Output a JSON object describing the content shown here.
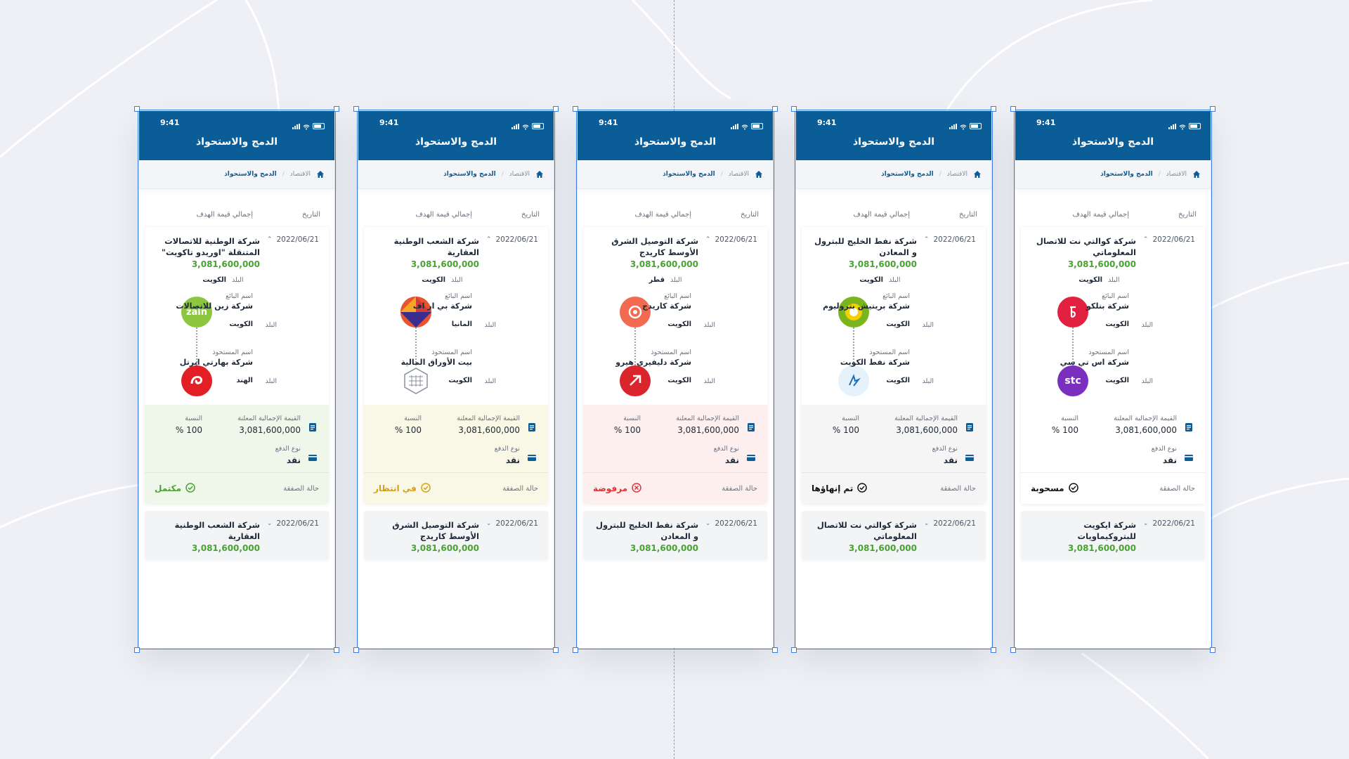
{
  "screens": [
    {
      "time": "9:41",
      "title": "الدمج والاستحواذ",
      "breadcrumb": {
        "parent": "الاقتصاد",
        "current": "الدمج والاستحواذ"
      },
      "columns": {
        "date": "التاريخ",
        "total": "إجمالي قيمة الهدف"
      },
      "deal": {
        "company": "شركة الوطنية للاتصالات المتنقلة \"اوريدو تاكويت\"",
        "date": "2022/06/21",
        "amount": "3,081,600,000",
        "country_label": "البلد",
        "country": "الكويت",
        "seller_label": "اسم البائع",
        "seller": "شركة زين للاتصالات",
        "seller_country": "الكويت",
        "seller_logo_text": "zain",
        "buyer_label": "اسم المستحوذ",
        "buyer": "شركة بهارتي ايرتل",
        "buyer_country": "الهند",
        "buyer_logo_text": "a"
      },
      "summary": {
        "declared_label": "القيمة الإجمالية المعلنة",
        "declared_value": "3,081,600,000",
        "ratio_label": "النسبة",
        "ratio_value": "100 %",
        "payment_label": "نوع الدفع",
        "payment_value": "نقد",
        "status_label": "حالة الصفقة",
        "status_value": "مكتمل"
      },
      "colors": {
        "summary_bg": "#eef7ea",
        "status": "#4aa134",
        "seller_logo": "#8dc63f",
        "buyer_logo": "#e31f26"
      },
      "next": {
        "company": "شركة الشعب الوطنية العقارية",
        "date": "2022/06/21",
        "amount": "3,081,600,000"
      }
    },
    {
      "time": "9:41",
      "title": "الدمج والاستحواذ",
      "breadcrumb": {
        "parent": "الاقتصاد",
        "current": "الدمج والاستحواذ"
      },
      "columns": {
        "date": "التاريخ",
        "total": "إجمالي قيمة الهدف"
      },
      "deal": {
        "company": "شركة الشعب الوطنية العقارية",
        "date": "2022/06/21",
        "amount": "3,081,600,000",
        "country_label": "البلد",
        "country": "الكويت",
        "seller_label": "اسم البائع",
        "seller": "شركة بي ار اف",
        "seller_country": "المانيا",
        "seller_logo_text": "",
        "buyer_label": "اسم المستحوذ",
        "buyer": "بيت الأوراق المالية",
        "buyer_country": "الكويت",
        "buyer_logo_text": ""
      },
      "summary": {
        "declared_label": "القيمة الإجمالية المعلنة",
        "declared_value": "3,081,600,000",
        "ratio_label": "النسبة",
        "ratio_value": "100 %",
        "payment_label": "نوع الدفع",
        "payment_value": "نقد",
        "status_label": "حالة الصفقة",
        "status_value": "في انتظار"
      },
      "colors": {
        "summary_bg": "#f9f8e6",
        "status": "#d4a017",
        "seller_logo": "#e8542f",
        "buyer_logo": "#ffffff"
      },
      "next": {
        "company": "شركة التوصيل الشرق الأوسط كاريدج",
        "date": "2022/06/21",
        "amount": "3,081,600,000"
      }
    },
    {
      "time": "9:41",
      "title": "الدمج والاستحواذ",
      "breadcrumb": {
        "parent": "الاقتصاد",
        "current": "الدمج والاستحواذ"
      },
      "columns": {
        "date": "التاريخ",
        "total": "إجمالي قيمة الهدف"
      },
      "deal": {
        "company": "شركة التوصيل الشرق الأوسط كاريدج",
        "date": "2022/06/21",
        "amount": "3,081,600,000",
        "country_label": "البلد",
        "country": "قطر",
        "seller_label": "اسم البائع",
        "seller": "شركة كاريدج",
        "seller_country": "الكويت",
        "seller_logo_text": "",
        "buyer_label": "اسم المستحوذ",
        "buyer": "شركة دليفيري هيرو",
        "buyer_country": "الكويت",
        "buyer_logo_text": ""
      },
      "summary": {
        "declared_label": "القيمة الإجمالية المعلنة",
        "declared_value": "3,081,600,000",
        "ratio_label": "النسبة",
        "ratio_value": "100 %",
        "payment_label": "نوع الدفع",
        "payment_value": "نقد",
        "status_label": "حالة الصفقة",
        "status_value": "مرفوضة"
      },
      "colors": {
        "summary_bg": "#fcefee",
        "status": "#e0333a",
        "seller_logo": "#f26a4f",
        "buyer_logo": "#d9252b"
      },
      "next": {
        "company": "شركة نفط الخليج للبترول و المعادن",
        "date": "2022/06/21",
        "amount": "3,081,600,000"
      }
    },
    {
      "time": "9:41",
      "title": "الدمج والاستحواذ",
      "breadcrumb": {
        "parent": "الاقتصاد",
        "current": "الدمج والاستحواذ"
      },
      "columns": {
        "date": "التاريخ",
        "total": "إجمالي قيمة الهدف"
      },
      "deal": {
        "company": "شركة نفط الخليج للبترول و المعادن",
        "date": "2022/06/21",
        "amount": "3,081,600,000",
        "country_label": "البلد",
        "country": "الكويت",
        "seller_label": "اسم البائع",
        "seller": "شركة بريتيش بتروليوم",
        "seller_country": "الكويت",
        "seller_logo_text": "",
        "buyer_label": "اسم المستحوذ",
        "buyer": "شركة نفط الكويت",
        "buyer_country": "الكويت",
        "buyer_logo_text": ""
      },
      "summary": {
        "declared_label": "القيمة الإجمالية المعلنة",
        "declared_value": "3,081,600,000",
        "ratio_label": "النسبة",
        "ratio_value": "100 %",
        "payment_label": "نوع الدفع",
        "payment_value": "نقد",
        "status_label": "حالة الصفقة",
        "status_value": "تم إنهاؤها"
      },
      "colors": {
        "summary_bg": "#f5f5f6",
        "status": "#111111",
        "seller_logo": "#7ab51d",
        "buyer_logo": "#e5f1fb"
      },
      "next": {
        "company": "شركة كوالتي نت للاتصال المعلوماتي",
        "date": "2022/06/21",
        "amount": "3,081,600,000"
      }
    },
    {
      "time": "9:41",
      "title": "الدمج والاستحواذ",
      "breadcrumb": {
        "parent": "الاقتصاد",
        "current": "الدمج والاستحواذ"
      },
      "columns": {
        "date": "التاريخ",
        "total": "إجمالي قيمة الهدف"
      },
      "deal": {
        "company": "شركة كوالتي نت للاتصال المعلوماتي",
        "date": "2022/06/21",
        "amount": "3,081,600,000",
        "country_label": "البلد",
        "country": "الكويت",
        "seller_label": "اسم البائع",
        "seller": "شركة بتلكو",
        "seller_country": "الكويت",
        "seller_logo_text": "",
        "buyer_label": "اسم المستحوذ",
        "buyer": "شركة اس تي سي",
        "buyer_country": "الكويت",
        "buyer_logo_text": "stc"
      },
      "summary": {
        "declared_label": "القيمة الإجمالية المعلنة",
        "declared_value": "3,081,600,000",
        "ratio_label": "النسبة",
        "ratio_value": "100 %",
        "payment_label": "نوع الدفع",
        "payment_value": "نقد",
        "status_label": "حالة الصفقة",
        "status_value": "مسحوبة"
      },
      "colors": {
        "summary_bg": "#ffffff",
        "status": "#111111",
        "seller_logo": "#e2203f",
        "buyer_logo": "#7b2fbf"
      },
      "next": {
        "company": "شركة ايكويت للبتروكيماويات",
        "date": "2022/06/21",
        "amount": "3,081,600,000"
      }
    }
  ]
}
